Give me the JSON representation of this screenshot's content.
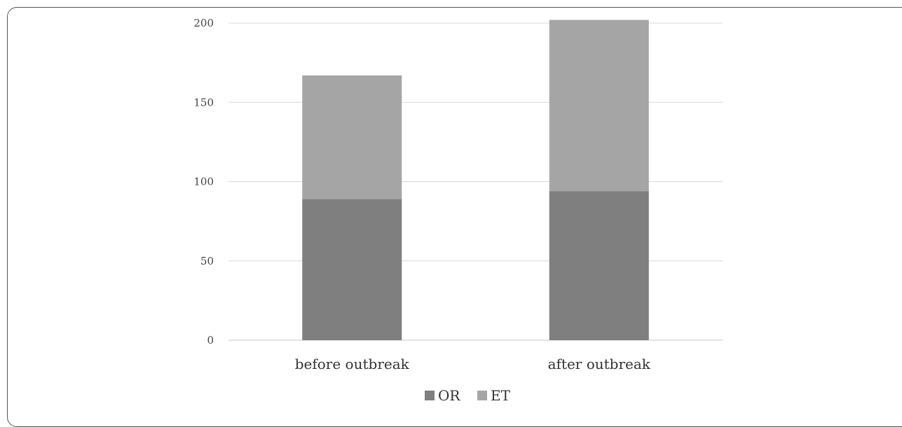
{
  "chart_data": {
    "type": "bar",
    "stacked": true,
    "categories": [
      "before outbreak",
      "after outbreak"
    ],
    "series": [
      {
        "name": "OR",
        "values": [
          89,
          94
        ],
        "color": "#7f7f7f"
      },
      {
        "name": "ET",
        "values": [
          78,
          108
        ],
        "color": "#a5a5a5"
      }
    ],
    "yticks": [
      "0",
      "50",
      "100",
      "150",
      "200"
    ],
    "ylim": [
      0,
      200
    ],
    "grid": true,
    "legend_position": "bottom"
  }
}
